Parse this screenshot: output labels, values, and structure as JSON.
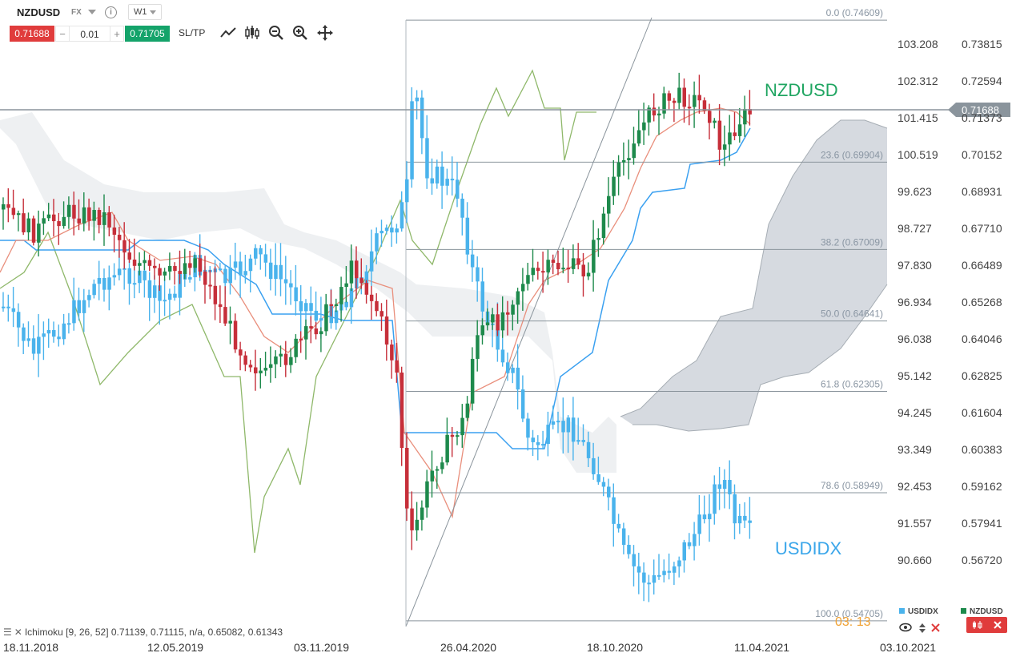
{
  "header": {
    "symbol": "NZDUSD",
    "market": "FX",
    "timeframe": "W1",
    "sell_price": "0.71688",
    "quantity": "0.01",
    "buy_price": "0.71705",
    "sltp_label": "SL/TP",
    "minus": "−",
    "plus": "+",
    "info": "i"
  },
  "tools": [
    "line-tool-icon",
    "candles-icon",
    "zoom-out-icon",
    "zoom-in-icon",
    "crosshair-move-icon"
  ],
  "colors": {
    "nzdusd_up": "#1e8a4c",
    "nzdusd_down": "#c62f3a",
    "usdidx": "#4ab3ec",
    "price_tag": "#8a949c",
    "tenkan": "#e98f7c",
    "kijun": "#3aa0f0",
    "chikou": "#8fb86a",
    "cloud": "#cfd4da"
  },
  "chart_data": {
    "type": "candlestick",
    "symbols": [
      "NZDUSD",
      "USDIDX"
    ],
    "x_tick_labels": [
      "18.11.2018",
      "12.05.2019",
      "03.11.2019",
      "26.04.2020",
      "18.10.2020",
      "11.04.2021",
      "03.10.2021"
    ],
    "y_left_ticks": [
      "103.208",
      "102.312",
      "101.415",
      "100.519",
      "99.623",
      "98.727",
      "97.830",
      "96.934",
      "96.038",
      "95.142",
      "94.245",
      "93.349",
      "92.453",
      "91.557",
      "90.660"
    ],
    "y_right_ticks": [
      "0.73815",
      "0.72594",
      "0.71373",
      "0.70152",
      "0.68931",
      "0.67710",
      "0.66489",
      "0.65268",
      "0.64046",
      "0.62825",
      "0.61604",
      "0.60383",
      "0.59162",
      "0.57941",
      "0.56720"
    ],
    "current_price": "0.71688",
    "fibonacci": [
      {
        "label": "0.0 (0.74609)",
        "value": 0.74609
      },
      {
        "label": "23.6 (0.69904)",
        "value": 0.69904
      },
      {
        "label": "38.2 (0.67009)",
        "value": 0.67009
      },
      {
        "label": "50.0 (0.64641)",
        "value": 0.64641
      },
      {
        "label": "61.8 (0.62305)",
        "value": 0.62305
      },
      {
        "label": "78.6 (0.58949)",
        "value": 0.58949
      },
      {
        "label": "100.0 (0.54705)",
        "value": 0.54705
      }
    ],
    "series_labels": {
      "nzdusd": "NZDUSD",
      "usdidx": "USDIDX"
    },
    "indicator": "Ichimoku [9, 26, 52] 0.71139, 0.71115, n/a, 0.65082, 0.61343",
    "countdown": "03: 13",
    "legend": [
      "USDIDX",
      "NZDUSD"
    ]
  }
}
